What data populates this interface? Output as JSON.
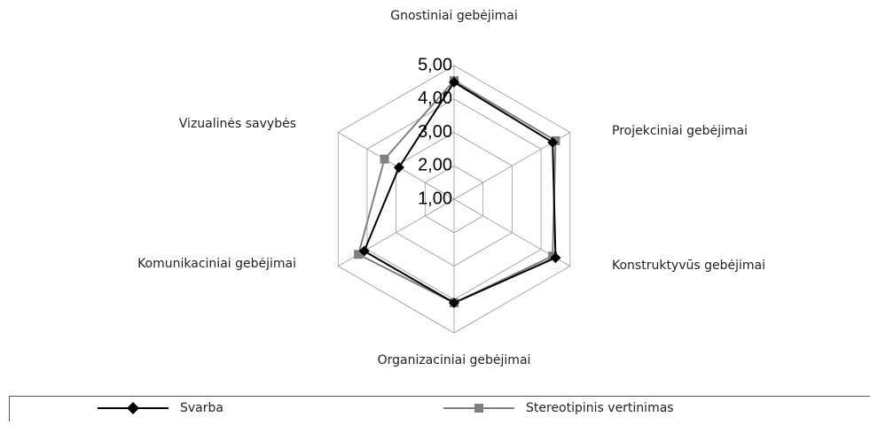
{
  "chart_data": {
    "type": "radar",
    "categories": [
      "Gnostiniai gebėjimai",
      "Projekciniai gebėjimai",
      "Konstruktyvūs gebėjimai",
      "Organizaciniai gebėjimai",
      "Komunikaciniai gebėjimai",
      "Vizualinės  savybės"
    ],
    "series": [
      {
        "name": "Svarba",
        "color": "#000000",
        "marker": "diamond",
        "values": [
          4.5,
          4.4,
          4.5,
          4.1,
          4.1,
          2.9
        ]
      },
      {
        "name": "Stereotipinis vertinimas",
        "color": "#808080",
        "marker": "square",
        "values": [
          4.55,
          4.5,
          4.4,
          4.1,
          4.3,
          3.4
        ]
      }
    ],
    "ylim": [
      1,
      5
    ],
    "yticks": [
      {
        "value": 1,
        "label": "1,00"
      },
      {
        "value": 2,
        "label": "2,00"
      },
      {
        "value": 3,
        "label": "3,00"
      },
      {
        "value": 4,
        "label": "4,00"
      },
      {
        "value": 5,
        "label": "5,00"
      }
    ],
    "grid": true,
    "legend": "bottom"
  }
}
